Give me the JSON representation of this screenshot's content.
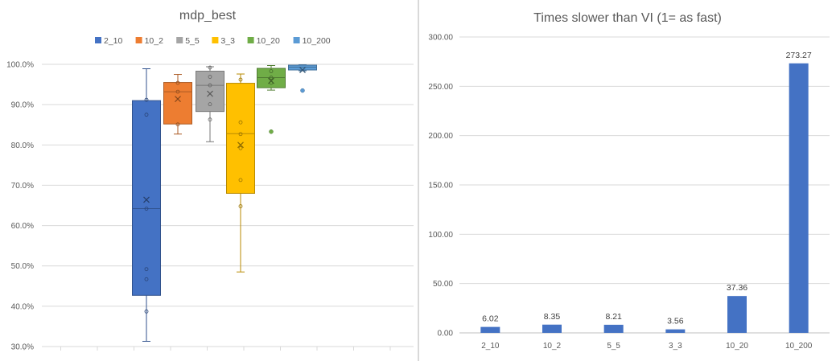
{
  "charts": [
    {
      "title": "mdp_best",
      "type": "box",
      "y_ticks": [
        "100.0%",
        "90.0%",
        "80.0%",
        "70.0%",
        "60.0%",
        "50.0%",
        "40.0%",
        "30.0%"
      ],
      "ylim": [
        30,
        100
      ],
      "legend_position": "top"
    },
    {
      "title": "Times slower than VI (1= as fast)",
      "type": "bar",
      "y_ticks": [
        "300.00",
        "250.00",
        "200.00",
        "150.00",
        "100.00",
        "50.00",
        "0.00"
      ],
      "ylim": [
        0,
        300
      ],
      "bar_color": "#4472C4"
    }
  ],
  "chart_data": [
    {
      "type": "box",
      "title": "mdp_best",
      "ylim": [
        30,
        100
      ],
      "grid": true,
      "legend_position": "top",
      "series": [
        {
          "name": "2_10",
          "color": "#4472C4",
          "min": 31.3,
          "q1": 42.7,
          "median": 64.2,
          "q3": 91.0,
          "max": 98.9,
          "mean": 66.4,
          "points": [
            91.2,
            87.5,
            64.2,
            49.2,
            46.7,
            38.7
          ],
          "outliers": []
        },
        {
          "name": "10_2",
          "color": "#ED7D31",
          "min": 82.7,
          "q1": 85.2,
          "median": 93.2,
          "q3": 95.5,
          "max": 97.5,
          "mean": 91.4,
          "points": [
            95.4,
            93.2,
            85.1
          ],
          "outliers": []
        },
        {
          "name": "5_5",
          "color": "#A5A5A5",
          "min": 80.8,
          "q1": 88.3,
          "median": 94.8,
          "q3": 98.3,
          "max": 99.4,
          "mean": 92.7,
          "points": [
            99.2,
            96.9,
            94.8,
            90.1,
            86.3
          ],
          "outliers": []
        },
        {
          "name": "3_3",
          "color": "#FFC000",
          "min": 48.5,
          "q1": 68.0,
          "median": 82.8,
          "q3": 95.3,
          "max": 97.6,
          "mean": 80.0,
          "points": [
            96.2,
            85.6,
            82.7,
            79.2,
            71.3,
            64.8
          ],
          "outliers": []
        },
        {
          "name": "10_20",
          "color": "#70AD47",
          "min": 93.6,
          "q1": 94.2,
          "median": 96.7,
          "q3": 99.0,
          "max": 99.7,
          "mean": 95.9,
          "points": [
            98.3,
            96.7,
            95.4
          ],
          "outliers": [
            83.3
          ]
        },
        {
          "name": "10_200",
          "color": "#5B9BD5",
          "min": 98.4,
          "q1": 98.6,
          "median": 99.3,
          "q3": 99.8,
          "max": 99.9,
          "mean": 98.6,
          "points": [],
          "outliers": [
            93.5
          ]
        }
      ]
    },
    {
      "type": "bar",
      "title": "Times slower than VI (1= as fast)",
      "categories": [
        "2_10",
        "10_2",
        "5_5",
        "3_3",
        "10_20",
        "10_200"
      ],
      "values": [
        6.02,
        8.35,
        8.21,
        3.56,
        37.36,
        273.27
      ],
      "value_labels": [
        "6.02",
        "8.35",
        "8.21",
        "3.56",
        "37.36",
        "273.27"
      ],
      "ylim": [
        0,
        300
      ],
      "grid": true,
      "color": "#4472C4"
    }
  ]
}
